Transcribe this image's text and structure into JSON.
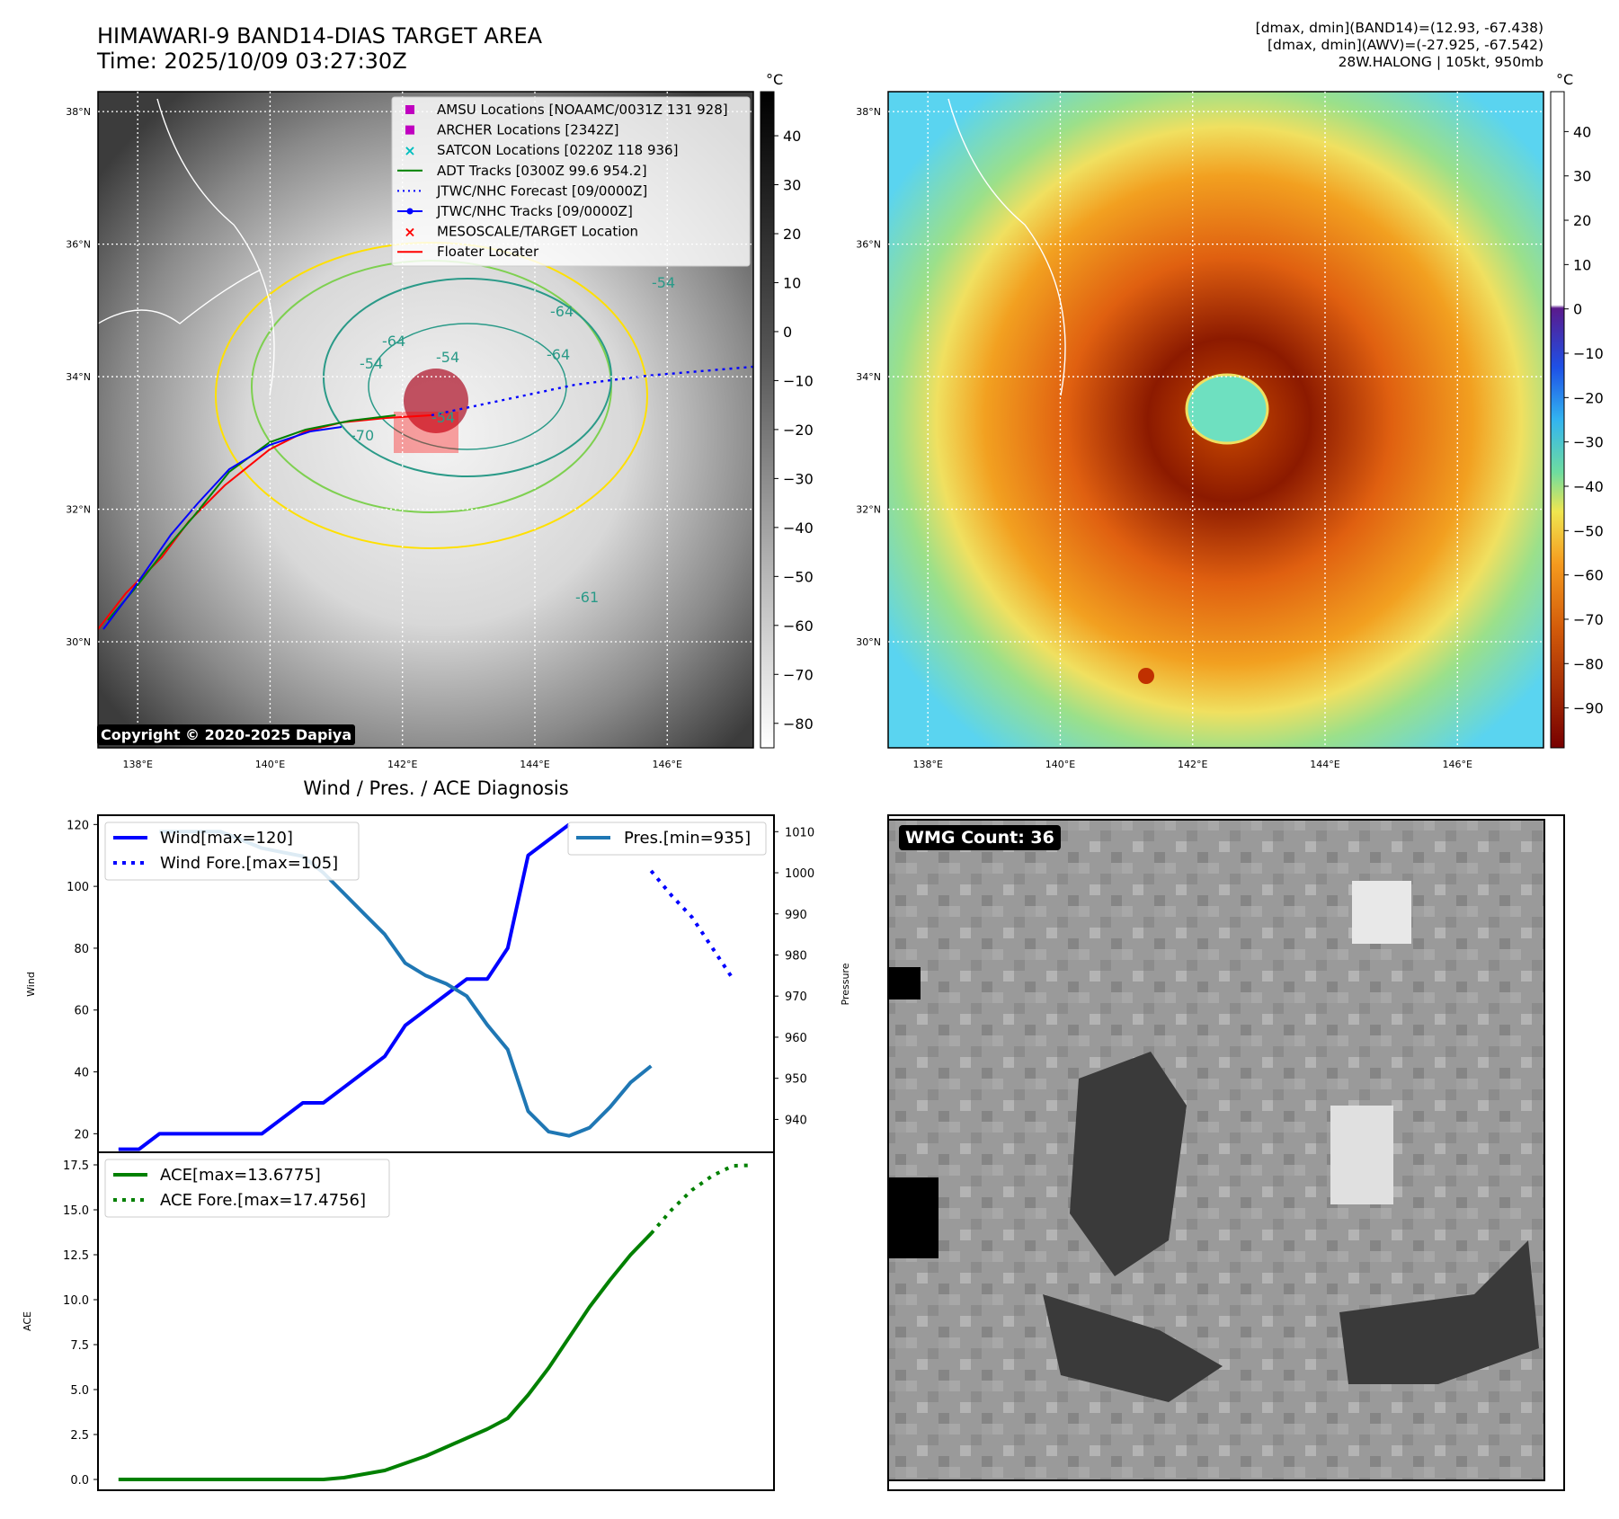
{
  "header": {
    "title_line1": "HIMAWARI-9 BAND14-DIAS TARGET AREA",
    "title_line2": "Time: 2025/10/09 03:27:30Z",
    "info_line1": "[dmax, dmin](BAND14)=(12.93, -67.438)",
    "info_line2": "[dmax, dmin](AWV)=(-27.925, -67.542)",
    "info_line3": "28W.HALONG | 105kt, 950mb"
  },
  "copyright": "Copyright © 2020-2025 Dapiya",
  "map": {
    "lat_labels": [
      "38°N",
      "36°N",
      "34°N",
      "32°N",
      "30°N"
    ],
    "lon_labels": [
      "138°E",
      "140°E",
      "142°E",
      "144°E",
      "146°E"
    ],
    "lat_range": [
      28.4,
      38.3
    ],
    "lon_range": [
      137.4,
      147.3
    ]
  },
  "colorbar_left": {
    "unit": "°C",
    "ticks": [
      "40",
      "30",
      "20",
      "10",
      "0",
      "−10",
      "−20",
      "−30",
      "−40",
      "−50",
      "−60",
      "−70",
      "−80"
    ],
    "range": [
      -85,
      49
    ]
  },
  "colorbar_right": {
    "unit": "°C",
    "ticks": [
      "40",
      "30",
      "20",
      "10",
      "0",
      "−10",
      "−20",
      "−30",
      "−40",
      "−50",
      "−60",
      "−70",
      "−80",
      "−90"
    ],
    "range": [
      -99,
      49
    ]
  },
  "contour_labels": [
    "-54",
    "-64",
    "-64",
    "-64",
    "-54",
    "-54",
    "-61",
    "-70",
    "-54"
  ],
  "legend": [
    {
      "label": "AMSU Locations [NOAAMC/0031Z 131 928]",
      "color": "#c000c0",
      "marker": "square"
    },
    {
      "label": "ARCHER Locations [2342Z]",
      "color": "#c000c0",
      "marker": "square"
    },
    {
      "label": "SATCON Locations [0220Z 118 936]",
      "color": "#00bfbf",
      "marker": "x"
    },
    {
      "label": "ADT Tracks [0300Z 99.6 954.2]",
      "color": "#008000",
      "marker": "line"
    },
    {
      "label": "JTWC/NHC Forecast [09/0000Z]",
      "color": "#0000ff",
      "marker": "dotted"
    },
    {
      "label": "JTWC/NHC Tracks [09/0000Z]",
      "color": "#0000ff",
      "marker": "line-dot"
    },
    {
      "label": "MESOSCALE/TARGET Location",
      "color": "#ff0000",
      "marker": "x"
    },
    {
      "label": "Floater Locater",
      "color": "#ff0000",
      "marker": "line"
    }
  ],
  "wmg_label": "WMG Count: 36",
  "chart_data": [
    {
      "type": "line",
      "title": "Wind / Pres. / ACE Diagnosis",
      "ylabel": "Wind",
      "ylabel_right": "Pressure",
      "ylim": [
        14,
        123
      ],
      "ylim_right": [
        932,
        1014
      ],
      "yticks": [
        20,
        40,
        60,
        80,
        100,
        120
      ],
      "yticks_right": [
        940,
        950,
        960,
        970,
        980,
        990,
        1000,
        1010
      ],
      "legend_left": [
        "Wind[max=120]",
        "Wind Fore.[max=105]"
      ],
      "legend_right": [
        "Pres.[min=935]"
      ],
      "series": [
        {
          "name": "Wind[max=120]",
          "color": "#0000ff",
          "style": "solid",
          "x": [
            0,
            1,
            2,
            3,
            4,
            5,
            6,
            7,
            8,
            9,
            10,
            11,
            12,
            13,
            14,
            15,
            16,
            17,
            18,
            19,
            20,
            21,
            22
          ],
          "values": [
            15,
            15,
            20,
            20,
            20,
            20,
            20,
            20,
            25,
            30,
            30,
            35,
            40,
            45,
            55,
            60,
            65,
            70,
            70,
            80,
            110,
            115,
            120
          ]
        },
        {
          "name": "Wind Fore.[max=105]",
          "color": "#0000ff",
          "style": "dotted",
          "x": [
            26,
            27,
            28,
            29,
            30
          ],
          "values": [
            105,
            97,
            90,
            80,
            70
          ]
        },
        {
          "name": "Pres.[min=935]",
          "color": "#1f77b4",
          "style": "solid",
          "x": [
            2,
            3,
            4,
            5,
            6,
            7,
            8,
            9,
            10,
            11,
            12,
            13,
            14,
            15,
            16,
            17,
            18,
            19,
            20,
            21,
            22,
            23,
            24,
            25,
            26
          ],
          "values": [
            1010,
            1010,
            1010,
            1010,
            1008,
            1006,
            1005,
            1004,
            1000,
            995,
            990,
            985,
            978,
            975,
            973,
            970,
            963,
            957,
            942,
            937,
            936,
            938,
            943,
            949,
            953
          ]
        }
      ]
    },
    {
      "type": "line",
      "ylabel": "ACE",
      "ylim": [
        -0.6,
        18.2
      ],
      "yticks": [
        0.0,
        2.5,
        5.0,
        7.5,
        10.0,
        12.5,
        15.0,
        17.5
      ],
      "legend": [
        "ACE[max=13.6775]",
        "ACE Fore.[max=17.4756]"
      ],
      "series": [
        {
          "name": "ACE[max=13.6775]",
          "color": "#008000",
          "style": "solid",
          "x": [
            0,
            10,
            11,
            12,
            13,
            14,
            15,
            16,
            17,
            18,
            19,
            20,
            21,
            22,
            23,
            24,
            25,
            26
          ],
          "values": [
            0,
            0,
            0.1,
            0.3,
            0.5,
            0.9,
            1.3,
            1.8,
            2.3,
            2.8,
            3.4,
            4.7,
            6.2,
            7.9,
            9.6,
            11.1,
            12.5,
            13.68
          ]
        },
        {
          "name": "ACE Fore.[max=17.4756]",
          "color": "#008000",
          "style": "dotted",
          "x": [
            26,
            27,
            28,
            29,
            30,
            31
          ],
          "values": [
            13.68,
            15.0,
            16.1,
            16.9,
            17.45,
            17.48
          ]
        }
      ]
    }
  ]
}
